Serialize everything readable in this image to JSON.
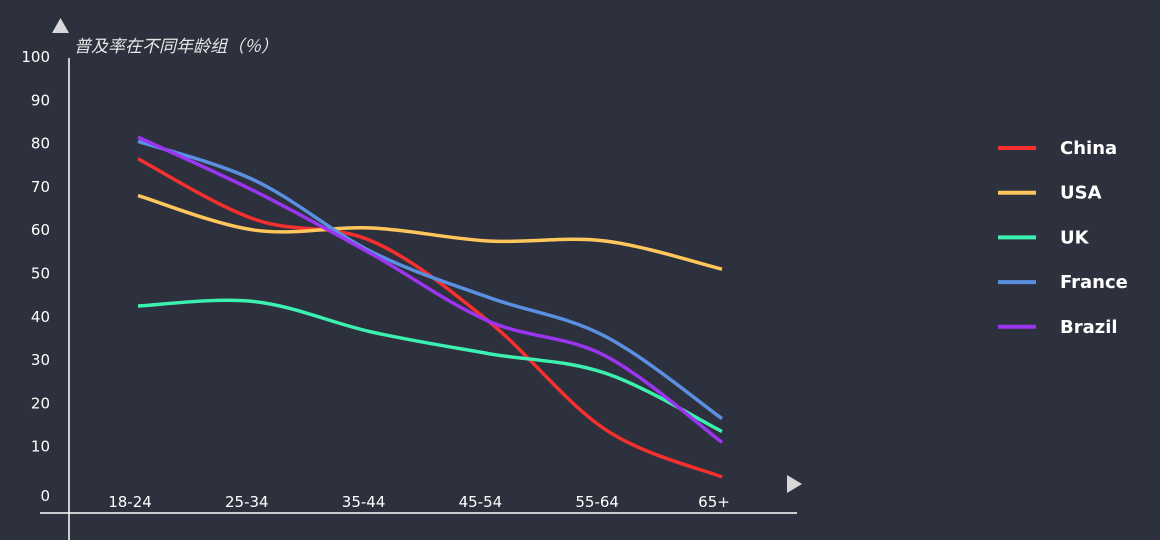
{
  "chart_data": {
    "type": "line",
    "ylabel": "普及率在不同年龄组（％）",
    "categories": [
      "18-24",
      "25-34",
      "35-44",
      "45-54",
      "55-64",
      "65+"
    ],
    "ylim": [
      0,
      100
    ],
    "yticks": [
      0,
      10,
      20,
      30,
      40,
      50,
      60,
      70,
      80,
      90,
      100
    ],
    "legend_position": "right",
    "grid": false,
    "series": [
      {
        "name": "China",
        "color": "#f5302f",
        "values": [
          76.5,
          62.5,
          57.5,
          39,
          14,
          3
        ]
      },
      {
        "name": "USA",
        "color": "#ffc65c",
        "values": [
          68,
          60,
          60.5,
          57.5,
          57.5,
          51
        ]
      },
      {
        "name": "UK",
        "color": "#3cf0b0",
        "values": [
          42.5,
          43.5,
          36.5,
          31.5,
          27,
          13.5
        ]
      },
      {
        "name": "France",
        "color": "#5b8fe0",
        "values": [
          80.5,
          71.5,
          55,
          44.5,
          35.5,
          16.5
        ]
      },
      {
        "name": "Brazil",
        "color": "#9b35f0",
        "values": [
          81.5,
          69,
          54.5,
          39,
          31,
          11
        ]
      }
    ]
  }
}
